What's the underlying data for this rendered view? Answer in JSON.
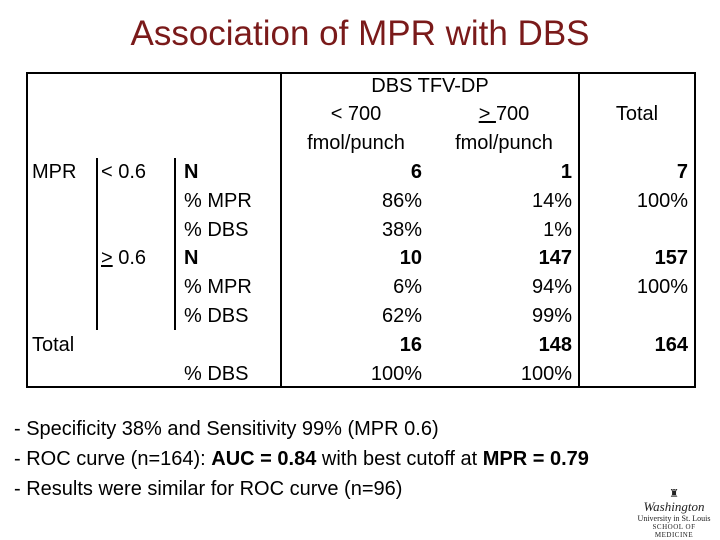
{
  "title": "Association of MPR with DBS",
  "table": {
    "header": {
      "group": "DBS TFV-DP",
      "col1_line1": "< 700",
      "col1_line2": "fmol/punch",
      "col2_prefix": "> ",
      "col2_value": "700",
      "col2_line2": "fmol/punch",
      "total": "Total"
    },
    "rows": {
      "mpr_label": "MPR",
      "low_prefix": "< ",
      "low_value": "0.6",
      "high_prefix": ">",
      "high_value": " 0.6",
      "total_label": "Total"
    },
    "measures": {
      "n": "N",
      "pct_mpr": "% MPR",
      "pct_dbs": "% DBS"
    },
    "low": {
      "n": [
        "6",
        "1",
        "7"
      ],
      "pct_mpr": [
        "86%",
        "14%",
        "100%"
      ],
      "pct_dbs": [
        "38%",
        "1%"
      ]
    },
    "high": {
      "n": [
        "10",
        "147",
        "157"
      ],
      "pct_mpr": [
        "6%",
        "94%",
        "100%"
      ],
      "pct_dbs": [
        "62%",
        "99%"
      ]
    },
    "total": {
      "n": [
        "16",
        "148",
        "164"
      ],
      "pct_dbs": [
        "100%",
        "100%"
      ]
    }
  },
  "notes": [
    {
      "plain": "- Specificity 38% and Sensitivity 99% (MPR 0.6)"
    },
    {
      "a": "- ROC curve (n=164): ",
      "b": "AUC = 0.84",
      "c": " with best cutoff at ",
      "d": "MPR = 0.79"
    },
    {
      "plain": "- Results were similar for ROC curve (n=96)"
    }
  ],
  "logo": {
    "line1": "Washington",
    "line2": "University in St. Louis",
    "line3": "SCHOOL OF MEDICINE"
  }
}
